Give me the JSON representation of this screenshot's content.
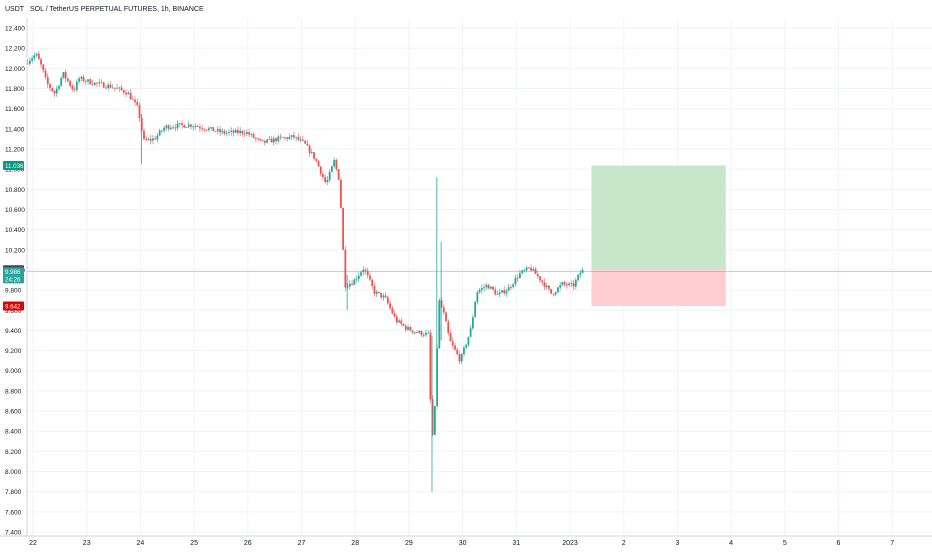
{
  "header": {
    "unit_label": "USDT",
    "title": "SOL / TetherUS PERPETUAL FUTURES, 1h, BINANCE"
  },
  "colors": {
    "up": "#26a69a",
    "down": "#ef5350",
    "profit_zone": "#c8e6c9",
    "loss_zone": "#ffcdd2",
    "target_badge": "#089981",
    "stop_badge": "#e00000",
    "entry_badge": "#434651",
    "price_badge": "#26a69a",
    "axis_text": "#131722",
    "price_line": "#26a69a"
  },
  "chart_data": {
    "type": "candlestick",
    "title": "SOL / TetherUS PERPETUAL FUTURES, 1h, BINANCE",
    "y_unit": "USDT",
    "ylim": [
      7.36,
      12.5
    ],
    "y_ticks": [
      "7.400",
      "7.600",
      "7.800",
      "8.000",
      "8.200",
      "8.400",
      "8.600",
      "8.800",
      "9.000",
      "9.200",
      "9.400",
      "9.600",
      "9.800",
      "10.000",
      "10.200",
      "10.400",
      "10.600",
      "10.800",
      "11.000",
      "11.200",
      "11.400",
      "11.600",
      "11.800",
      "12.000",
      "12.200",
      "12.400"
    ],
    "x_ticks": [
      {
        "day": 22,
        "label": "22"
      },
      {
        "day": 23,
        "label": "23"
      },
      {
        "day": 24,
        "label": "24"
      },
      {
        "day": 25,
        "label": "25"
      },
      {
        "day": 26,
        "label": "26"
      },
      {
        "day": 27,
        "label": "27"
      },
      {
        "day": 28,
        "label": "28"
      },
      {
        "day": 29,
        "label": "29"
      },
      {
        "day": 30,
        "label": "30"
      },
      {
        "day": 31,
        "label": "31"
      },
      {
        "day": 32,
        "label": "2023"
      },
      {
        "day": 33,
        "label": "2"
      },
      {
        "day": 34,
        "label": "3"
      },
      {
        "day": 35,
        "label": "4"
      },
      {
        "day": 36,
        "label": "5"
      },
      {
        "day": 37,
        "label": "6"
      },
      {
        "day": 38,
        "label": "7"
      }
    ],
    "price_path": [
      [
        21.9,
        12.05
      ],
      [
        22.0,
        12.1
      ],
      [
        22.1,
        12.14
      ],
      [
        22.2,
        12.02
      ],
      [
        22.3,
        11.85
      ],
      [
        22.45,
        11.75
      ],
      [
        22.6,
        11.95
      ],
      [
        22.8,
        11.78
      ],
      [
        22.9,
        11.9
      ],
      [
        23.2,
        11.85
      ],
      [
        23.5,
        11.82
      ],
      [
        23.8,
        11.76
      ],
      [
        24.0,
        11.6
      ],
      [
        24.1,
        11.28
      ],
      [
        24.3,
        11.3
      ],
      [
        24.5,
        11.42
      ],
      [
        24.7,
        11.43
      ],
      [
        25.0,
        11.44
      ],
      [
        25.3,
        11.4
      ],
      [
        25.6,
        11.36
      ],
      [
        26.0,
        11.37
      ],
      [
        26.3,
        11.26
      ],
      [
        26.6,
        11.3
      ],
      [
        26.9,
        11.32
      ],
      [
        27.1,
        11.25
      ],
      [
        27.3,
        11.1
      ],
      [
        27.5,
        10.85
      ],
      [
        27.6,
        11.0
      ],
      [
        27.65,
        11.08
      ],
      [
        27.75,
        10.88
      ],
      [
        27.85,
        9.85
      ],
      [
        28.0,
        9.88
      ],
      [
        28.2,
        10.02
      ],
      [
        28.4,
        9.78
      ],
      [
        28.6,
        9.72
      ],
      [
        28.8,
        9.5
      ],
      [
        29.0,
        9.42
      ],
      [
        29.2,
        9.38
      ],
      [
        29.4,
        9.36
      ],
      [
        29.45,
        8.58
      ],
      [
        29.5,
        8.25
      ],
      [
        29.55,
        9.0
      ],
      [
        29.6,
        9.7
      ],
      [
        29.7,
        9.55
      ],
      [
        29.8,
        9.3
      ],
      [
        30.0,
        9.1
      ],
      [
        30.2,
        9.42
      ],
      [
        30.3,
        9.78
      ],
      [
        30.5,
        9.85
      ],
      [
        30.7,
        9.75
      ],
      [
        30.9,
        9.82
      ],
      [
        31.1,
        9.96
      ],
      [
        31.3,
        10.02
      ],
      [
        31.5,
        9.9
      ],
      [
        31.7,
        9.76
      ],
      [
        31.9,
        9.86
      ],
      [
        32.1,
        9.84
      ],
      [
        32.25,
        9.99
      ]
    ],
    "wicks": [
      {
        "day": 29.52,
        "high": 10.92,
        "low": 8.9
      },
      {
        "day": 29.43,
        "high": 9.35,
        "low": 7.8
      },
      {
        "day": 29.6,
        "high": 10.28,
        "low": 9.3
      },
      {
        "day": 27.85,
        "high": 9.95,
        "low": 9.6
      },
      {
        "day": 24.02,
        "high": 11.55,
        "low": 11.05
      }
    ],
    "position": {
      "direction": "long",
      "entry": 10.002,
      "target": 11.036,
      "stop": 9.642,
      "start_day": 32.4,
      "end_day": 34.9
    },
    "last_price": 9.986,
    "countdown": "24:26",
    "badges": {
      "target": "11.036",
      "entry": "10.002",
      "last": "9.986",
      "stop": "9.642"
    }
  }
}
